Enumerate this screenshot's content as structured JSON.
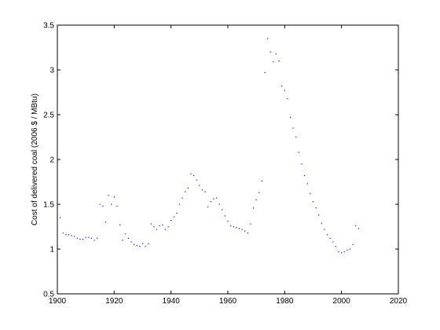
{
  "chart_data": {
    "type": "scatter",
    "title": "",
    "xlabel": "",
    "ylabel": "Cost of delivered coal (2006 $ / MBtu)",
    "xlim": [
      1900,
      2020
    ],
    "ylim": [
      0.5,
      3.5
    ],
    "xticks": [
      1900,
      1920,
      1940,
      1960,
      1980,
      2000,
      2020
    ],
    "yticks": [
      0.5,
      1,
      1.5,
      2,
      2.5,
      3,
      3.5
    ],
    "xtick_labels": [
      "1900",
      "1920",
      "1940",
      "1960",
      "1980",
      "2000",
      "2020"
    ],
    "ytick_labels": [
      "0.5",
      "1",
      "1.5",
      "2",
      "2.5",
      "3",
      "3.5"
    ],
    "grid": false,
    "marker_color": "#0000ff",
    "series": [
      {
        "x": [
          1901,
          1902,
          1903,
          1904,
          1905,
          1906,
          1907,
          1908,
          1909,
          1910,
          1911,
          1912,
          1913,
          1914,
          1915,
          1916,
          1917,
          1918,
          1919,
          1920,
          1921,
          1922,
          1923,
          1924,
          1925,
          1926,
          1927,
          1928,
          1929,
          1930,
          1931,
          1932,
          1933,
          1934,
          1935,
          1936,
          1937,
          1938,
          1939,
          1940,
          1941,
          1942,
          1943,
          1944,
          1945,
          1946,
          1947,
          1948,
          1949,
          1950,
          1951,
          1952,
          1953,
          1954,
          1955,
          1956,
          1957,
          1958,
          1959,
          1960,
          1961,
          1962,
          1963,
          1964,
          1965,
          1966,
          1967,
          1968,
          1969,
          1970,
          1971,
          1972,
          1973,
          1974,
          1975,
          1976,
          1977,
          1978,
          1979,
          1980,
          1981,
          1982,
          1983,
          1984,
          1985,
          1986,
          1987,
          1988,
          1989,
          1990,
          1991,
          1992,
          1993,
          1994,
          1995,
          1996,
          1997,
          1998,
          1999,
          2000,
          2001,
          2002,
          2003,
          2004,
          2005,
          2006
        ],
        "y": [
          1.35,
          1.18,
          1.16,
          1.16,
          1.15,
          1.14,
          1.12,
          1.11,
          1.11,
          1.13,
          1.13,
          1.12,
          1.1,
          1.12,
          1.5,
          1.48,
          1.3,
          1.6,
          1.5,
          1.58,
          1.48,
          1.27,
          1.1,
          1.17,
          1.12,
          1.08,
          1.05,
          1.04,
          1.03,
          1.06,
          1.03,
          1.06,
          1.28,
          1.25,
          1.22,
          1.26,
          1.27,
          1.22,
          1.25,
          1.32,
          1.36,
          1.4,
          1.5,
          1.57,
          1.64,
          1.68,
          1.84,
          1.82,
          1.77,
          1.71,
          1.66,
          1.64,
          1.47,
          1.53,
          1.56,
          1.57,
          1.5,
          1.44,
          1.37,
          1.31,
          1.26,
          1.25,
          1.24,
          1.23,
          1.22,
          1.2,
          1.18,
          1.28,
          1.46,
          1.55,
          1.63,
          1.76,
          2.97,
          3.35,
          3.2,
          3.09,
          3.18,
          3.1,
          2.82,
          2.77,
          2.68,
          2.47,
          2.35,
          2.25,
          2.08,
          1.95,
          1.82,
          1.73,
          1.62,
          1.53,
          1.46,
          1.38,
          1.29,
          1.22,
          1.16,
          1.12,
          1.08,
          1.03,
          0.97,
          0.96,
          0.97,
          0.99,
          1.0,
          1.05,
          1.26,
          1.23
        ]
      }
    ]
  }
}
